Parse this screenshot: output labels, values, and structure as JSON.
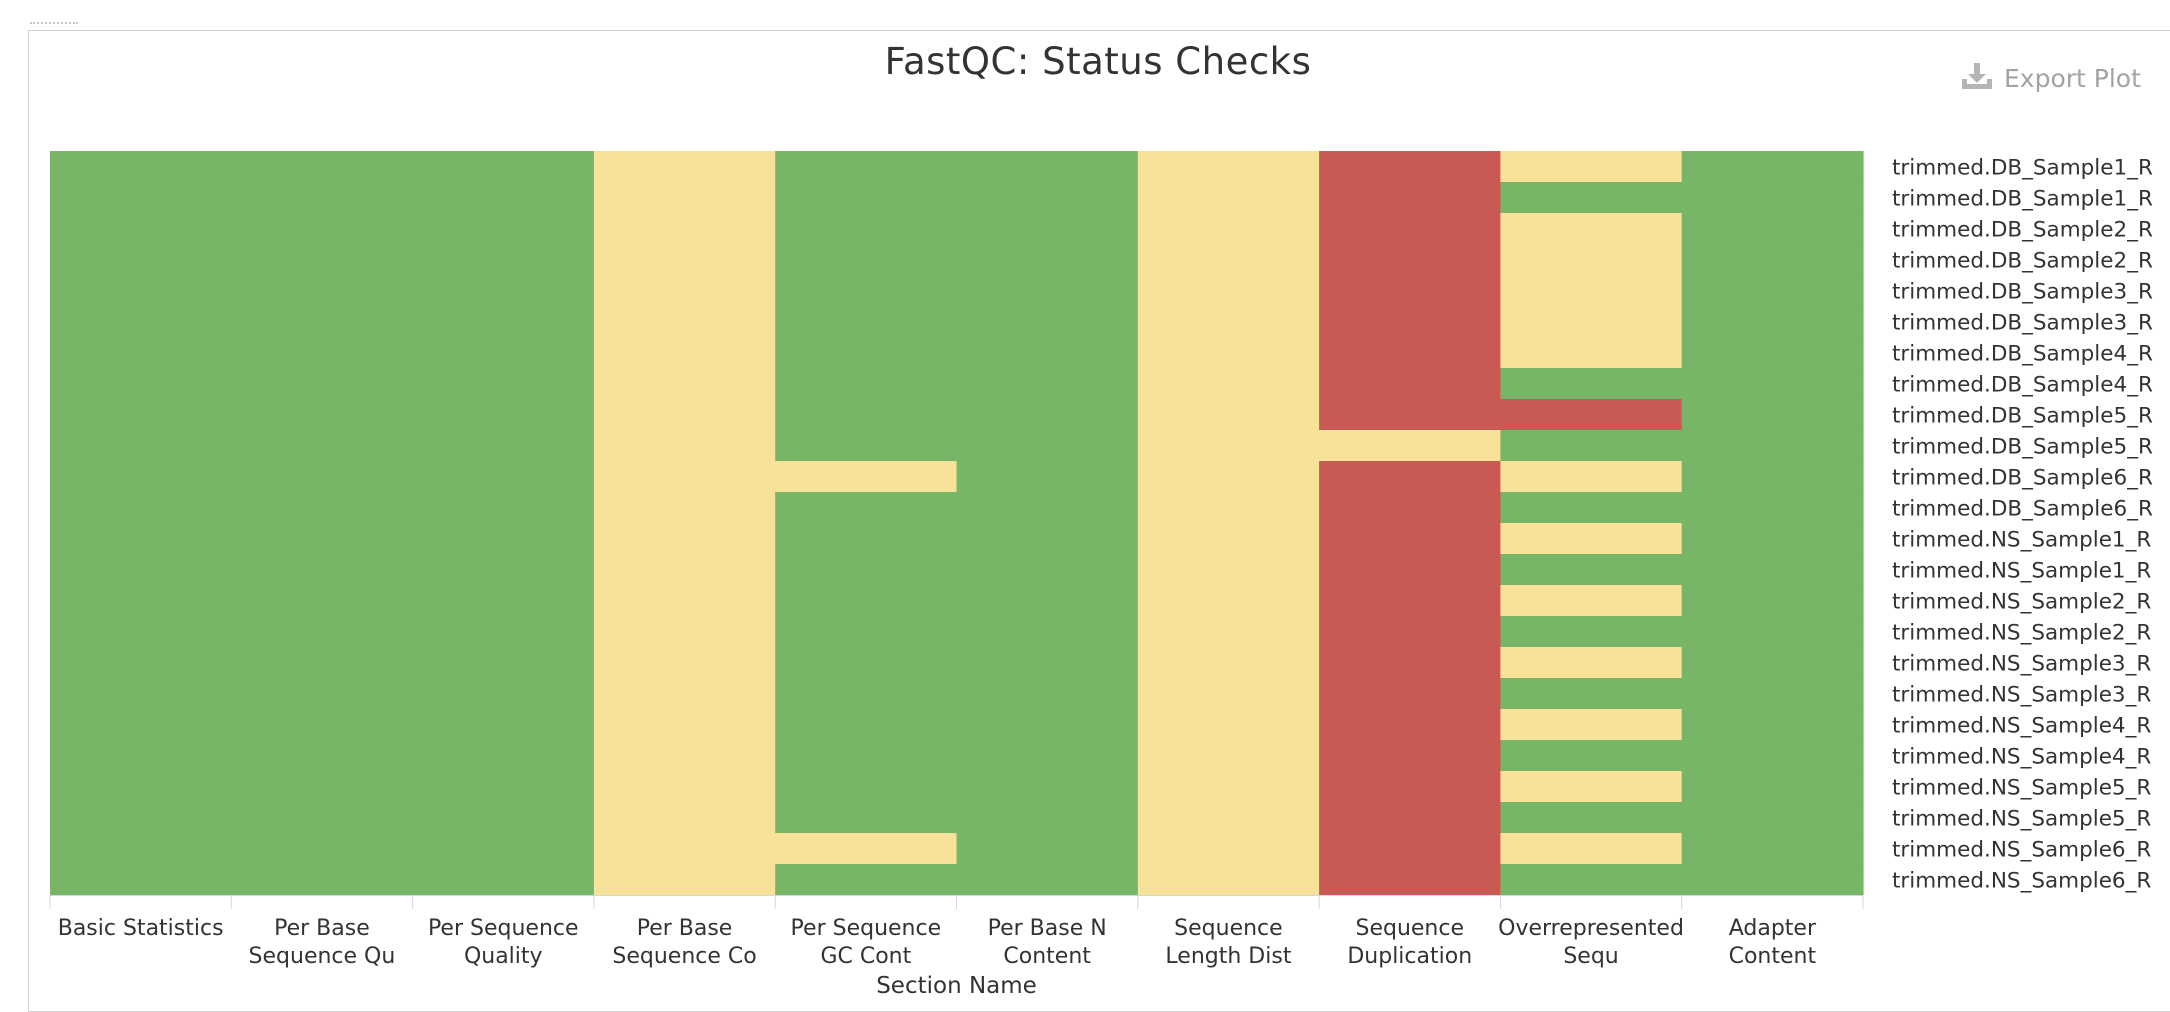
{
  "chart_data": {
    "type": "heatmap",
    "title": "FastQC: Status Checks",
    "xlabel": "Section Name",
    "export_label": "Export Plot",
    "status_colors": {
      "pass": "#76b666",
      "warn": "#f8e199",
      "fail": "#c95a53"
    },
    "x_tick_labels": [
      [
        "Basic Statistics"
      ],
      [
        "Per Base",
        "Sequence Qu"
      ],
      [
        "Per Sequence",
        "Quality"
      ],
      [
        "Per Base",
        "Sequence Co"
      ],
      [
        "Per Sequence",
        "GC Cont"
      ],
      [
        "Per Base N",
        "Content"
      ],
      [
        "Sequence",
        "Length Dist"
      ],
      [
        "Sequence",
        "Duplication"
      ],
      [
        "Overrepresented",
        "Sequ"
      ],
      [
        "Adapter",
        "Content"
      ]
    ],
    "samples": [
      "trimmed.DB_Sample1_R",
      "trimmed.DB_Sample1_R",
      "trimmed.DB_Sample2_R",
      "trimmed.DB_Sample2_R",
      "trimmed.DB_Sample3_R",
      "trimmed.DB_Sample3_R",
      "trimmed.DB_Sample4_R",
      "trimmed.DB_Sample4_R",
      "trimmed.DB_Sample5_R",
      "trimmed.DB_Sample5_R",
      "trimmed.DB_Sample6_R",
      "trimmed.DB_Sample6_R",
      "trimmed.NS_Sample1_R",
      "trimmed.NS_Sample1_R",
      "trimmed.NS_Sample2_R",
      "trimmed.NS_Sample2_R",
      "trimmed.NS_Sample3_R",
      "trimmed.NS_Sample3_R",
      "trimmed.NS_Sample4_R",
      "trimmed.NS_Sample4_R",
      "trimmed.NS_Sample5_R",
      "trimmed.NS_Sample5_R",
      "trimmed.NS_Sample6_R",
      "trimmed.NS_Sample6_R"
    ],
    "status_matrix": [
      [
        "pass",
        "pass",
        "pass",
        "warn",
        "pass",
        "pass",
        "warn",
        "fail",
        "warn",
        "pass"
      ],
      [
        "pass",
        "pass",
        "pass",
        "warn",
        "pass",
        "pass",
        "warn",
        "fail",
        "pass",
        "pass"
      ],
      [
        "pass",
        "pass",
        "pass",
        "warn",
        "pass",
        "pass",
        "warn",
        "fail",
        "warn",
        "pass"
      ],
      [
        "pass",
        "pass",
        "pass",
        "warn",
        "pass",
        "pass",
        "warn",
        "fail",
        "warn",
        "pass"
      ],
      [
        "pass",
        "pass",
        "pass",
        "warn",
        "pass",
        "pass",
        "warn",
        "fail",
        "warn",
        "pass"
      ],
      [
        "pass",
        "pass",
        "pass",
        "warn",
        "pass",
        "pass",
        "warn",
        "fail",
        "warn",
        "pass"
      ],
      [
        "pass",
        "pass",
        "pass",
        "warn",
        "pass",
        "pass",
        "warn",
        "fail",
        "warn",
        "pass"
      ],
      [
        "pass",
        "pass",
        "pass",
        "warn",
        "pass",
        "pass",
        "warn",
        "fail",
        "pass",
        "pass"
      ],
      [
        "pass",
        "pass",
        "pass",
        "warn",
        "pass",
        "pass",
        "warn",
        "fail",
        "fail",
        "pass"
      ],
      [
        "pass",
        "pass",
        "pass",
        "warn",
        "pass",
        "pass",
        "warn",
        "warn",
        "pass",
        "pass"
      ],
      [
        "pass",
        "pass",
        "pass",
        "warn",
        "warn",
        "pass",
        "warn",
        "fail",
        "warn",
        "pass"
      ],
      [
        "pass",
        "pass",
        "pass",
        "warn",
        "pass",
        "pass",
        "warn",
        "fail",
        "pass",
        "pass"
      ],
      [
        "pass",
        "pass",
        "pass",
        "warn",
        "pass",
        "pass",
        "warn",
        "fail",
        "warn",
        "pass"
      ],
      [
        "pass",
        "pass",
        "pass",
        "warn",
        "pass",
        "pass",
        "warn",
        "fail",
        "pass",
        "pass"
      ],
      [
        "pass",
        "pass",
        "pass",
        "warn",
        "pass",
        "pass",
        "warn",
        "fail",
        "warn",
        "pass"
      ],
      [
        "pass",
        "pass",
        "pass",
        "warn",
        "pass",
        "pass",
        "warn",
        "fail",
        "pass",
        "pass"
      ],
      [
        "pass",
        "pass",
        "pass",
        "warn",
        "pass",
        "pass",
        "warn",
        "fail",
        "warn",
        "pass"
      ],
      [
        "pass",
        "pass",
        "pass",
        "warn",
        "pass",
        "pass",
        "warn",
        "fail",
        "pass",
        "pass"
      ],
      [
        "pass",
        "pass",
        "pass",
        "warn",
        "pass",
        "pass",
        "warn",
        "fail",
        "warn",
        "pass"
      ],
      [
        "pass",
        "pass",
        "pass",
        "warn",
        "pass",
        "pass",
        "warn",
        "fail",
        "pass",
        "pass"
      ],
      [
        "pass",
        "pass",
        "pass",
        "warn",
        "pass",
        "pass",
        "warn",
        "fail",
        "warn",
        "pass"
      ],
      [
        "pass",
        "pass",
        "pass",
        "warn",
        "pass",
        "pass",
        "warn",
        "fail",
        "pass",
        "pass"
      ],
      [
        "pass",
        "pass",
        "pass",
        "warn",
        "warn",
        "pass",
        "warn",
        "fail",
        "warn",
        "pass"
      ],
      [
        "pass",
        "pass",
        "pass",
        "warn",
        "pass",
        "pass",
        "warn",
        "fail",
        "pass",
        "pass"
      ]
    ],
    "grid": false,
    "legend": "none"
  },
  "icons": {
    "export": "download-icon"
  }
}
